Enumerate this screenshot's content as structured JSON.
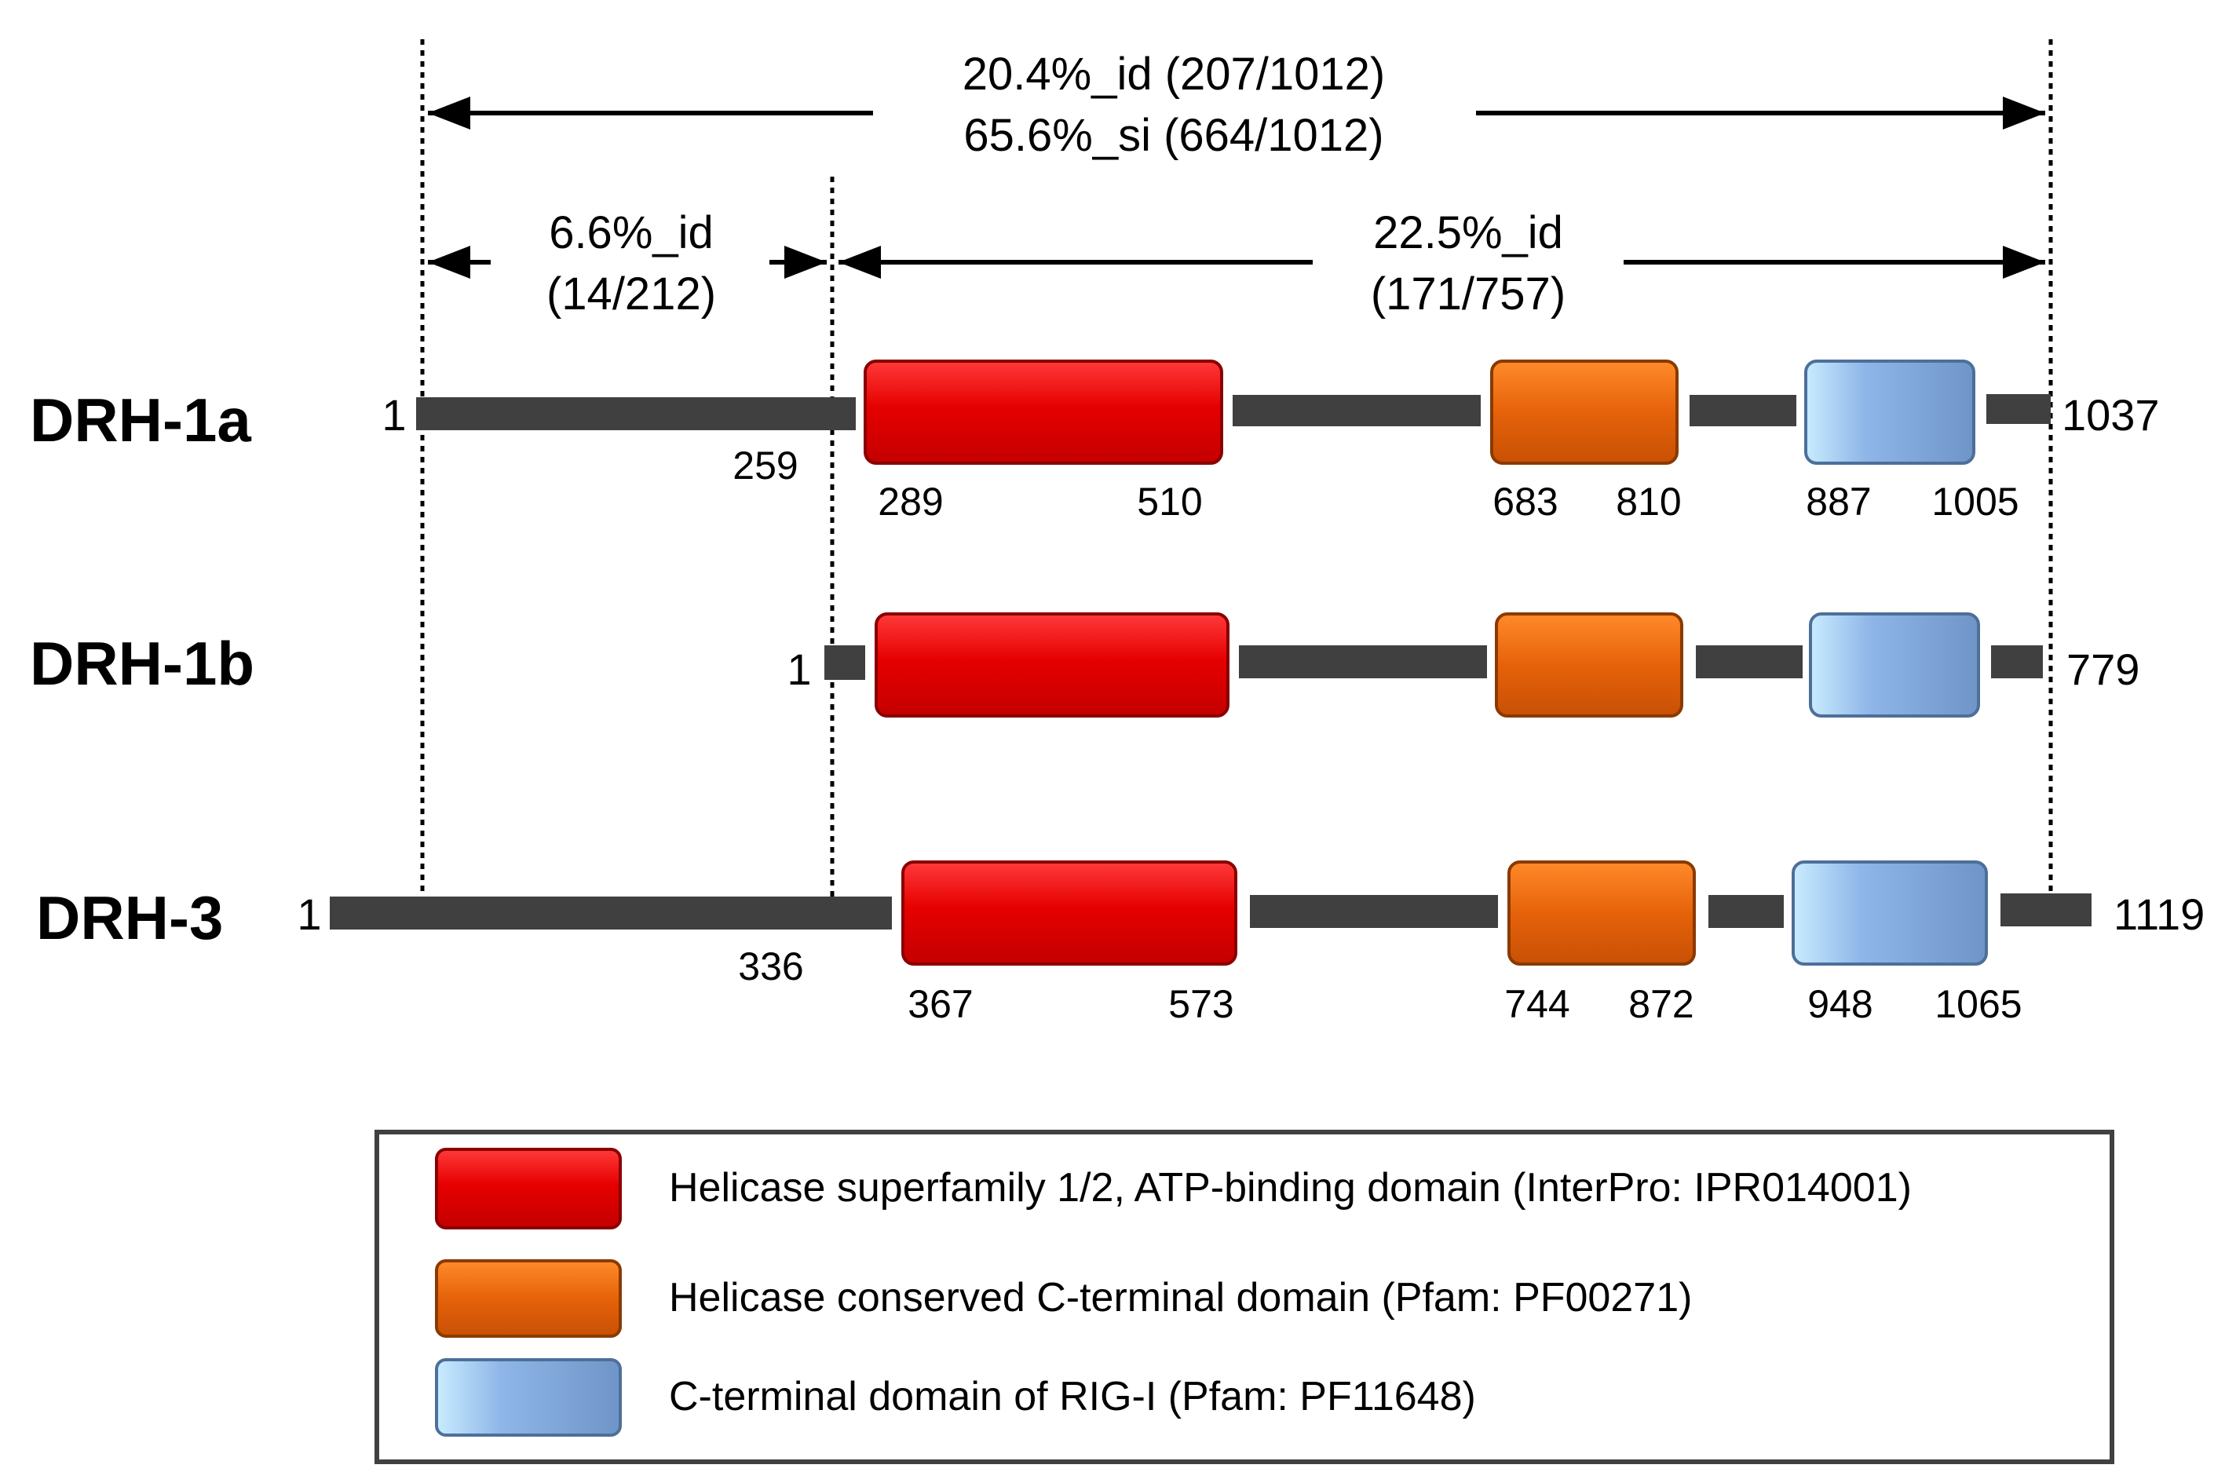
{
  "annotations": {
    "overall": {
      "line1": "20.4%_id (207/1012)",
      "line2": "65.6%_si (664/1012)"
    },
    "nterm": {
      "line1": "6.6%_id",
      "line2": "(14/212)"
    },
    "cterm": {
      "line1": "22.5%_id",
      "line2": "(171/757)"
    }
  },
  "proteins": [
    {
      "name": "DRH-1a",
      "start": "1",
      "end": "1037",
      "nterm_end": "259",
      "helicase": [
        "289",
        "510"
      ],
      "cterminal": [
        "683",
        "810"
      ],
      "rigi": [
        "887",
        "1005"
      ]
    },
    {
      "name": "DRH-1b",
      "start": "1",
      "end": "779"
    },
    {
      "name": "DRH-3",
      "start": "1",
      "end": "1119",
      "nterm_end": "336",
      "helicase": [
        "367",
        "573"
      ],
      "cterminal": [
        "744",
        "872"
      ],
      "rigi": [
        "948",
        "1065"
      ]
    }
  ],
  "legend": [
    {
      "label": "Helicase superfamily 1/2, ATP-binding domain (InterPro: IPR014001)",
      "color": "#e00000"
    },
    {
      "label": "Helicase conserved C-terminal domain (Pfam: PF00271)",
      "color": "#e8640c"
    },
    {
      "label": "C-terminal domain of RIG-I (Pfam: PF11648)",
      "color": "#7fa8de"
    }
  ],
  "colors": {
    "backbone": "#404040",
    "helicase": "#e00000",
    "cterminal": "#e8640c",
    "rigi": "#7fa8de"
  }
}
